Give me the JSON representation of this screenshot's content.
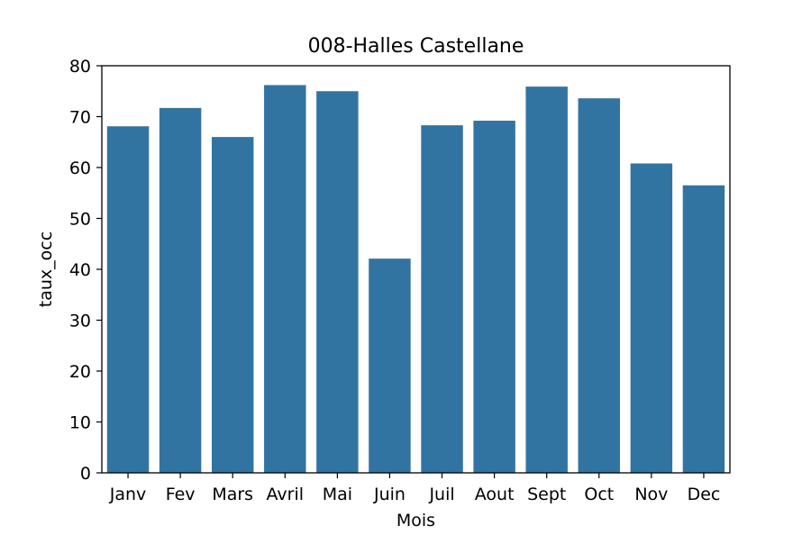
{
  "chart_data": {
    "type": "bar",
    "title": "008-Halles Castellane",
    "xlabel": "Mois",
    "ylabel": "taux_occ",
    "categories": [
      "Janv",
      "Fev",
      "Mars",
      "Avril",
      "Mai",
      "Juin",
      "Juil",
      "Aout",
      "Sept",
      "Oct",
      "Nov",
      "Dec"
    ],
    "values": [
      68.1,
      71.7,
      66.0,
      76.2,
      75.0,
      42.1,
      68.3,
      69.2,
      75.9,
      73.6,
      60.8,
      56.5
    ],
    "ylim": [
      0,
      80
    ],
    "yticks": [
      "0",
      "10",
      "20",
      "30",
      "40",
      "50",
      "60",
      "70",
      "80"
    ],
    "grid": false,
    "bar_color": "#3274a1"
  }
}
